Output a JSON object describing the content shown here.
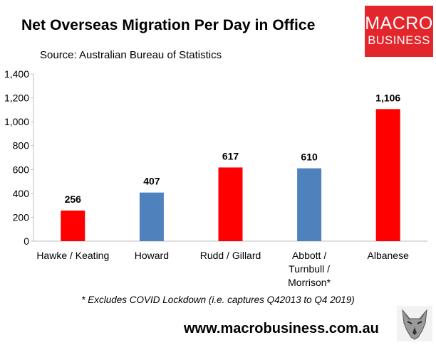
{
  "title": "Net Overseas Migration Per Day in Office",
  "subtitle": "Source: Australian Bureau of Statistics",
  "logo": {
    "line1": "MACRO",
    "line2": "BUSINESS"
  },
  "footnote": "* Excludes COVID Lockdown (i.e. captures Q42013 to Q4 2019)",
  "url": "www.macrobusiness.com.au",
  "colors": {
    "red": "#ff0000",
    "blue": "#4f81bd",
    "logo_red": "#e2262b"
  },
  "chart_data": {
    "type": "bar",
    "categories": [
      "Hawke / Keating",
      "Howard",
      "Rudd / Gillard",
      "Abbott / Turnbull / Morrison*",
      "Albanese"
    ],
    "category_lines": [
      [
        "Hawke / Keating"
      ],
      [
        "Howard"
      ],
      [
        "Rudd / Gillard"
      ],
      [
        "Abbott /",
        "Turnbull /",
        "Morrison*"
      ],
      [
        "Albanese"
      ]
    ],
    "values": [
      256,
      407,
      617,
      610,
      1106
    ],
    "value_labels": [
      "256",
      "407",
      "617",
      "610",
      "1,106"
    ],
    "bar_colors": [
      "#ff0000",
      "#4f81bd",
      "#ff0000",
      "#4f81bd",
      "#ff0000"
    ],
    "ylim": [
      0,
      1400
    ],
    "yticks": [
      0,
      200,
      400,
      600,
      800,
      1000,
      1200,
      1400
    ],
    "ytick_labels": [
      "0",
      "200",
      "400",
      "600",
      "800",
      "1,000",
      "1,200",
      "1,400"
    ],
    "grid": false,
    "legend": false,
    "xlabel": "",
    "ylabel": ""
  }
}
